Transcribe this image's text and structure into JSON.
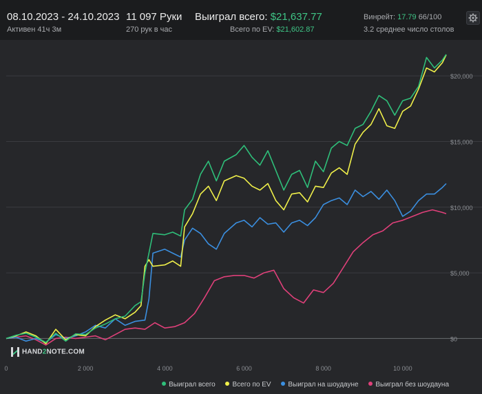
{
  "header": {
    "date_range": "08.10.2023 - 24.10.2023",
    "active": "Активен 41ч 3м",
    "hands": "11 097 Руки",
    "hands_per_hour": "270 рук в час",
    "won_label": "Выиграл всего:",
    "won_value": "$21,637.77",
    "ev_label": "Всего по EV:",
    "ev_value": "$21,602.87",
    "winrate_label": "Винрейт:",
    "winrate_value": "17.79",
    "winrate_count": "66/100",
    "tables": "3.2 среднее число столов"
  },
  "logo": {
    "text_before": "HAND",
    "text_mid": "2",
    "text_after": "NOTE.COM"
  },
  "colors": {
    "won": "#2fbf7a",
    "ev": "#f0f04a",
    "showdown": "#3b8fe0",
    "nonshowdown": "#e0407a",
    "grid": "#3a3c40",
    "axis_text": "#8a8d92"
  },
  "chart_data": {
    "type": "line",
    "title": "",
    "xlabel": "",
    "ylabel": "",
    "xlim": [
      0,
      11097
    ],
    "ylim": [
      -1500,
      22000
    ],
    "x_ticks": [
      0,
      2000,
      4000,
      6000,
      8000,
      10000
    ],
    "x_tick_labels": [
      "0",
      "2 000",
      "4 000",
      "6 000",
      "8 000",
      "10 000"
    ],
    "y_ticks": [
      0,
      5000,
      10000,
      15000,
      20000
    ],
    "y_tick_labels": [
      "$0",
      "$5,000",
      "$10,000",
      "$15,000",
      "$20,000"
    ],
    "grid": true,
    "legend_position": "bottom-right",
    "series": [
      {
        "name": "Выиграл всего",
        "color": "#2fbf7a",
        "points": [
          [
            0,
            0
          ],
          [
            250,
            250
          ],
          [
            500,
            400
          ],
          [
            750,
            100
          ],
          [
            1000,
            -300
          ],
          [
            1250,
            400
          ],
          [
            1500,
            -200
          ],
          [
            1750,
            350
          ],
          [
            2000,
            300
          ],
          [
            2250,
            800
          ],
          [
            2500,
            1100
          ],
          [
            2750,
            1500
          ],
          [
            3000,
            1700
          ],
          [
            3250,
            2500
          ],
          [
            3400,
            2800
          ],
          [
            3500,
            5000
          ],
          [
            3600,
            6500
          ],
          [
            3700,
            8000
          ],
          [
            4000,
            7900
          ],
          [
            4200,
            8100
          ],
          [
            4400,
            7800
          ],
          [
            4500,
            9800
          ],
          [
            4700,
            10600
          ],
          [
            4900,
            12500
          ],
          [
            5100,
            13500
          ],
          [
            5300,
            12000
          ],
          [
            5500,
            13500
          ],
          [
            5800,
            14000
          ],
          [
            6000,
            14700
          ],
          [
            6200,
            13800
          ],
          [
            6400,
            13200
          ],
          [
            6600,
            14300
          ],
          [
            6800,
            12800
          ],
          [
            7000,
            11300
          ],
          [
            7200,
            12500
          ],
          [
            7400,
            12800
          ],
          [
            7600,
            11500
          ],
          [
            7800,
            13500
          ],
          [
            8000,
            12700
          ],
          [
            8200,
            14500
          ],
          [
            8400,
            15000
          ],
          [
            8600,
            14700
          ],
          [
            8800,
            16000
          ],
          [
            9000,
            16300
          ],
          [
            9200,
            17300
          ],
          [
            9400,
            18500
          ],
          [
            9600,
            18100
          ],
          [
            9800,
            17000
          ],
          [
            10000,
            18100
          ],
          [
            10200,
            18300
          ],
          [
            10400,
            19200
          ],
          [
            10600,
            21400
          ],
          [
            10800,
            20600
          ],
          [
            11000,
            21200
          ],
          [
            11097,
            21638
          ]
        ]
      },
      {
        "name": "Всего по EV",
        "color": "#f0f04a",
        "points": [
          [
            0,
            0
          ],
          [
            250,
            200
          ],
          [
            500,
            500
          ],
          [
            750,
            200
          ],
          [
            1000,
            -400
          ],
          [
            1250,
            700
          ],
          [
            1500,
            -100
          ],
          [
            1750,
            300
          ],
          [
            2000,
            200
          ],
          [
            2250,
            900
          ],
          [
            2500,
            1400
          ],
          [
            2750,
            1800
          ],
          [
            3000,
            1500
          ],
          [
            3250,
            2000
          ],
          [
            3400,
            2500
          ],
          [
            3500,
            5500
          ],
          [
            3600,
            6000
          ],
          [
            3700,
            5500
          ],
          [
            4000,
            5600
          ],
          [
            4200,
            5900
          ],
          [
            4400,
            5500
          ],
          [
            4500,
            8500
          ],
          [
            4700,
            9500
          ],
          [
            4900,
            11000
          ],
          [
            5100,
            11600
          ],
          [
            5300,
            10500
          ],
          [
            5500,
            12000
          ],
          [
            5800,
            12400
          ],
          [
            6000,
            12200
          ],
          [
            6200,
            11600
          ],
          [
            6400,
            11300
          ],
          [
            6600,
            11800
          ],
          [
            6800,
            10500
          ],
          [
            7000,
            9800
          ],
          [
            7200,
            11000
          ],
          [
            7400,
            11100
          ],
          [
            7600,
            10400
          ],
          [
            7800,
            11600
          ],
          [
            8000,
            11500
          ],
          [
            8200,
            12600
          ],
          [
            8400,
            13000
          ],
          [
            8600,
            12500
          ],
          [
            8800,
            14800
          ],
          [
            9000,
            15700
          ],
          [
            9200,
            16300
          ],
          [
            9400,
            17500
          ],
          [
            9600,
            16200
          ],
          [
            9800,
            16000
          ],
          [
            10000,
            17300
          ],
          [
            10200,
            17700
          ],
          [
            10400,
            19000
          ],
          [
            10600,
            20600
          ],
          [
            10800,
            20300
          ],
          [
            11000,
            21000
          ],
          [
            11097,
            21603
          ]
        ]
      },
      {
        "name": "Выиграл на шоудауне",
        "color": "#3b8fe0",
        "points": [
          [
            0,
            0
          ],
          [
            250,
            100
          ],
          [
            500,
            -200
          ],
          [
            750,
            0
          ],
          [
            1000,
            -300
          ],
          [
            1250,
            300
          ],
          [
            1500,
            0
          ],
          [
            1750,
            200
          ],
          [
            2000,
            500
          ],
          [
            2250,
            1000
          ],
          [
            2500,
            800
          ],
          [
            2750,
            1500
          ],
          [
            3000,
            1000
          ],
          [
            3250,
            1300
          ],
          [
            3500,
            1400
          ],
          [
            3600,
            3000
          ],
          [
            3700,
            6500
          ],
          [
            4000,
            6800
          ],
          [
            4200,
            6500
          ],
          [
            4400,
            6200
          ],
          [
            4500,
            7500
          ],
          [
            4700,
            8400
          ],
          [
            4900,
            8000
          ],
          [
            5100,
            7200
          ],
          [
            5300,
            6800
          ],
          [
            5500,
            8000
          ],
          [
            5800,
            8800
          ],
          [
            6000,
            9000
          ],
          [
            6200,
            8500
          ],
          [
            6400,
            9200
          ],
          [
            6600,
            8700
          ],
          [
            6800,
            8800
          ],
          [
            7000,
            8100
          ],
          [
            7200,
            8800
          ],
          [
            7400,
            9000
          ],
          [
            7600,
            8600
          ],
          [
            7800,
            9200
          ],
          [
            8000,
            10200
          ],
          [
            8200,
            10500
          ],
          [
            8400,
            10700
          ],
          [
            8600,
            10200
          ],
          [
            8800,
            11300
          ],
          [
            9000,
            10800
          ],
          [
            9200,
            11200
          ],
          [
            9400,
            10600
          ],
          [
            9600,
            11300
          ],
          [
            9800,
            10500
          ],
          [
            10000,
            9300
          ],
          [
            10200,
            9700
          ],
          [
            10400,
            10500
          ],
          [
            10600,
            11000
          ],
          [
            10800,
            11000
          ],
          [
            11000,
            11500
          ],
          [
            11097,
            11800
          ]
        ]
      },
      {
        "name": "Выиграл без шоудауна",
        "color": "#e0407a",
        "points": [
          [
            0,
            0
          ],
          [
            250,
            100
          ],
          [
            500,
            200
          ],
          [
            750,
            -100
          ],
          [
            1000,
            -500
          ],
          [
            1250,
            0
          ],
          [
            1500,
            100
          ],
          [
            1750,
            0
          ],
          [
            2000,
            100
          ],
          [
            2250,
            200
          ],
          [
            2500,
            -100
          ],
          [
            2750,
            300
          ],
          [
            3000,
            700
          ],
          [
            3250,
            800
          ],
          [
            3500,
            700
          ],
          [
            3750,
            1200
          ],
          [
            4000,
            800
          ],
          [
            4250,
            900
          ],
          [
            4500,
            1200
          ],
          [
            4750,
            1900
          ],
          [
            5000,
            3100
          ],
          [
            5250,
            4400
          ],
          [
            5500,
            4700
          ],
          [
            5750,
            4800
          ],
          [
            6000,
            4800
          ],
          [
            6250,
            4600
          ],
          [
            6500,
            5000
          ],
          [
            6750,
            5200
          ],
          [
            7000,
            3800
          ],
          [
            7250,
            3100
          ],
          [
            7500,
            2700
          ],
          [
            7750,
            3700
          ],
          [
            8000,
            3500
          ],
          [
            8250,
            4200
          ],
          [
            8500,
            5400
          ],
          [
            8750,
            6600
          ],
          [
            9000,
            7300
          ],
          [
            9250,
            7900
          ],
          [
            9500,
            8200
          ],
          [
            9750,
            8800
          ],
          [
            10000,
            9000
          ],
          [
            10250,
            9300
          ],
          [
            10500,
            9600
          ],
          [
            10750,
            9800
          ],
          [
            11000,
            9600
          ],
          [
            11097,
            9500
          ]
        ]
      }
    ]
  }
}
